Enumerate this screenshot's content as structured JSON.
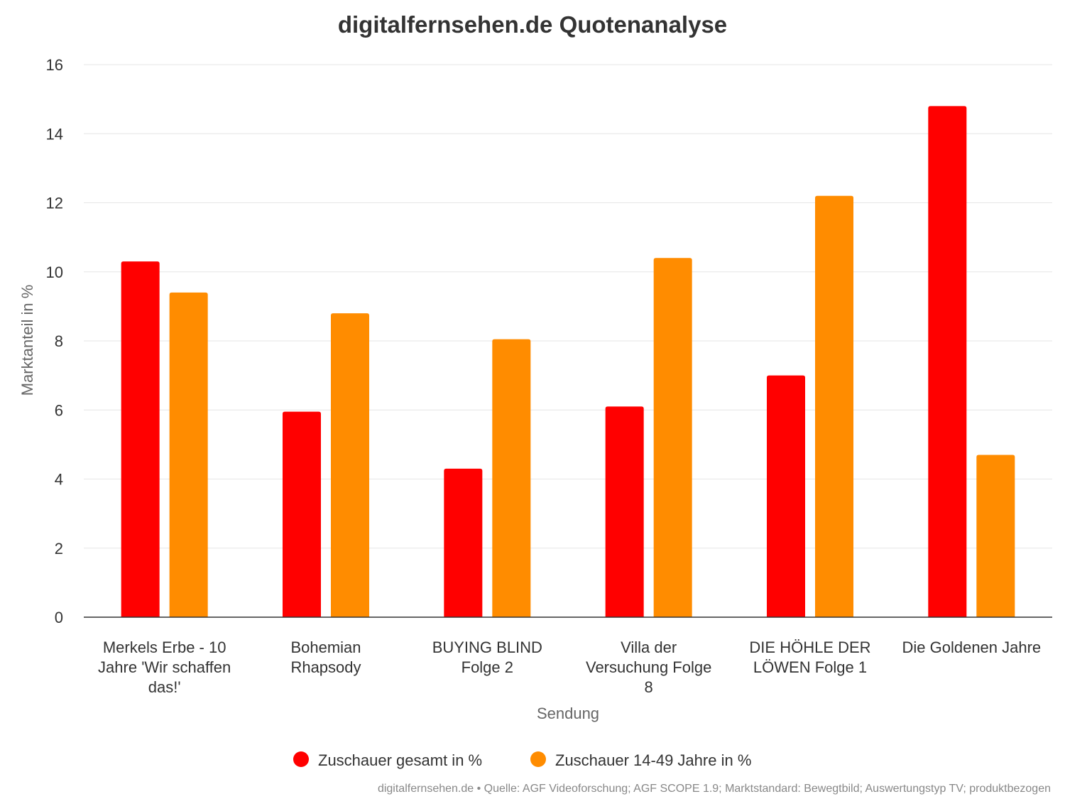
{
  "chart_data": {
    "type": "bar",
    "title": "digitalfernsehen.de Quotenanalyse",
    "xlabel": "Sendung",
    "ylabel": "Marktanteil in %",
    "ylim": [
      0,
      16
    ],
    "yticks": [
      0,
      2,
      4,
      6,
      8,
      10,
      12,
      14,
      16
    ],
    "grid": true,
    "legend_position": "bottom",
    "categories": [
      [
        "Merkels Erbe - 10",
        "Jahre 'Wir schaffen",
        "das!'"
      ],
      [
        "Bohemian",
        "Rhapsody"
      ],
      [
        "BUYING BLIND",
        "Folge 2"
      ],
      [
        "Villa der",
        "Versuchung Folge",
        "8"
      ],
      [
        "DIE HÖHLE DER",
        "LÖWEN Folge 1"
      ],
      [
        "Die Goldenen Jahre"
      ]
    ],
    "series": [
      {
        "name": "Zuschauer gesamt in %",
        "color": "#ff0000",
        "values": [
          10.3,
          5.95,
          4.3,
          6.1,
          7.0,
          14.8
        ]
      },
      {
        "name": "Zuschauer 14-49 Jahre in %",
        "color": "#ff8c00",
        "values": [
          9.4,
          8.8,
          8.05,
          10.4,
          12.2,
          4.7
        ]
      }
    ],
    "credits": "digitalfernsehen.de • Quelle: AGF Videoforschung; AGF SCOPE 1.9; Marktstandard: Bewegtbild; Auswertungstyp TV; produktbezogen"
  }
}
